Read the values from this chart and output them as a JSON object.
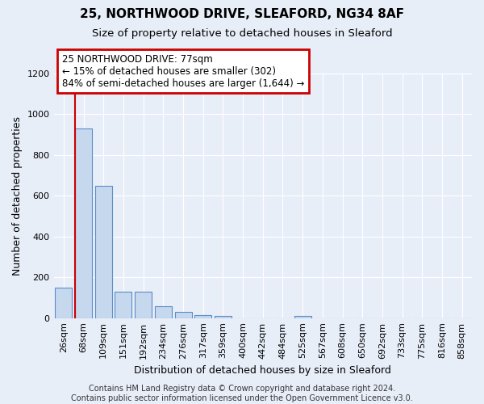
{
  "title1": "25, NORTHWOOD DRIVE, SLEAFORD, NG34 8AF",
  "title2": "Size of property relative to detached houses in Sleaford",
  "xlabel": "Distribution of detached houses by size in Sleaford",
  "ylabel": "Number of detached properties",
  "categories": [
    "26sqm",
    "68sqm",
    "109sqm",
    "151sqm",
    "192sqm",
    "234sqm",
    "276sqm",
    "317sqm",
    "359sqm",
    "400sqm",
    "442sqm",
    "484sqm",
    "525sqm",
    "567sqm",
    "608sqm",
    "650sqm",
    "692sqm",
    "733sqm",
    "775sqm",
    "816sqm",
    "858sqm"
  ],
  "values": [
    150,
    930,
    650,
    130,
    130,
    60,
    30,
    15,
    10,
    0,
    0,
    0,
    10,
    0,
    0,
    0,
    0,
    0,
    0,
    0,
    0
  ],
  "bar_color": "#c5d8ee",
  "bar_edge_color": "#5b8dc8",
  "highlight_bar_index": 1,
  "highlight_edge_color": "#cc0000",
  "ylim": [
    0,
    1200
  ],
  "yticks": [
    0,
    200,
    400,
    600,
    800,
    1000,
    1200
  ],
  "background_color": "#e8eef8",
  "grid_color": "#ffffff",
  "annotation_line1": "25 NORTHWOOD DRIVE: 77sqm",
  "annotation_line2": "← 15% of detached houses are smaller (302)",
  "annotation_line3": "84% of semi-detached houses are larger (1,644) →",
  "annotation_box_color": "#ffffff",
  "annotation_box_edge_color": "#cc0000",
  "footer_line1": "Contains HM Land Registry data © Crown copyright and database right 2024.",
  "footer_line2": "Contains public sector information licensed under the Open Government Licence v3.0.",
  "title1_fontsize": 11,
  "title2_fontsize": 9.5,
  "xlabel_fontsize": 9,
  "ylabel_fontsize": 9,
  "tick_fontsize": 8,
  "annotation_fontsize": 8.5,
  "footer_fontsize": 7
}
